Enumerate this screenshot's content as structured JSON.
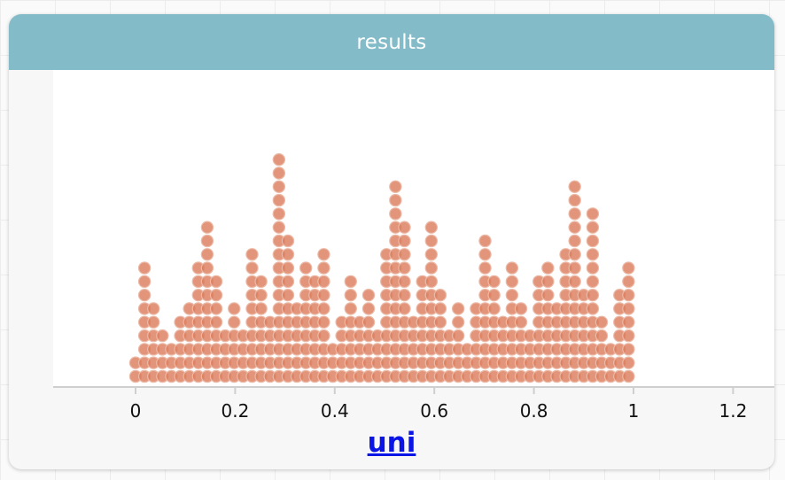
{
  "panel": {
    "title": "results"
  },
  "variable_link": "uni",
  "colors": {
    "dot_fill": "#dc7e5e",
    "dot_stroke": "#ebb9a6",
    "header": "#83bcc8",
    "link": "#0a14e6"
  },
  "chart_data": {
    "type": "dot plot",
    "x_ticks": [
      "0",
      "0.2",
      "0.4",
      "0.6",
      "0.8",
      "1",
      "1.2"
    ],
    "xlim": [
      -0.16,
      1.25
    ],
    "bin_width": 0.018,
    "bins": [
      {
        "x": 0.0,
        "count": 2
      },
      {
        "x": 0.018,
        "count": 9
      },
      {
        "x": 0.036,
        "count": 6
      },
      {
        "x": 0.054,
        "count": 4
      },
      {
        "x": 0.072,
        "count": 3
      },
      {
        "x": 0.09,
        "count": 5
      },
      {
        "x": 0.108,
        "count": 6
      },
      {
        "x": 0.126,
        "count": 9
      },
      {
        "x": 0.144,
        "count": 12
      },
      {
        "x": 0.162,
        "count": 8
      },
      {
        "x": 0.18,
        "count": 4
      },
      {
        "x": 0.198,
        "count": 6
      },
      {
        "x": 0.216,
        "count": 4
      },
      {
        "x": 0.234,
        "count": 10
      },
      {
        "x": 0.252,
        "count": 8
      },
      {
        "x": 0.27,
        "count": 5
      },
      {
        "x": 0.288,
        "count": 17
      },
      {
        "x": 0.306,
        "count": 11
      },
      {
        "x": 0.324,
        "count": 6
      },
      {
        "x": 0.342,
        "count": 9
      },
      {
        "x": 0.36,
        "count": 8
      },
      {
        "x": 0.378,
        "count": 10
      },
      {
        "x": 0.396,
        "count": 3
      },
      {
        "x": 0.414,
        "count": 5
      },
      {
        "x": 0.432,
        "count": 8
      },
      {
        "x": 0.45,
        "count": 5
      },
      {
        "x": 0.468,
        "count": 7
      },
      {
        "x": 0.486,
        "count": 4
      },
      {
        "x": 0.504,
        "count": 10
      },
      {
        "x": 0.522,
        "count": 15
      },
      {
        "x": 0.54,
        "count": 12
      },
      {
        "x": 0.558,
        "count": 5
      },
      {
        "x": 0.576,
        "count": 8
      },
      {
        "x": 0.594,
        "count": 12
      },
      {
        "x": 0.612,
        "count": 7
      },
      {
        "x": 0.63,
        "count": 4
      },
      {
        "x": 0.648,
        "count": 6
      },
      {
        "x": 0.666,
        "count": 3
      },
      {
        "x": 0.684,
        "count": 6
      },
      {
        "x": 0.702,
        "count": 11
      },
      {
        "x": 0.72,
        "count": 8
      },
      {
        "x": 0.738,
        "count": 5
      },
      {
        "x": 0.756,
        "count": 9
      },
      {
        "x": 0.774,
        "count": 6
      },
      {
        "x": 0.792,
        "count": 4
      },
      {
        "x": 0.81,
        "count": 8
      },
      {
        "x": 0.828,
        "count": 9
      },
      {
        "x": 0.846,
        "count": 6
      },
      {
        "x": 0.864,
        "count": 10
      },
      {
        "x": 0.882,
        "count": 15
      },
      {
        "x": 0.9,
        "count": 7
      },
      {
        "x": 0.918,
        "count": 13
      },
      {
        "x": 0.936,
        "count": 5
      },
      {
        "x": 0.954,
        "count": 3
      },
      {
        "x": 0.972,
        "count": 7
      },
      {
        "x": 0.99,
        "count": 9
      }
    ]
  }
}
